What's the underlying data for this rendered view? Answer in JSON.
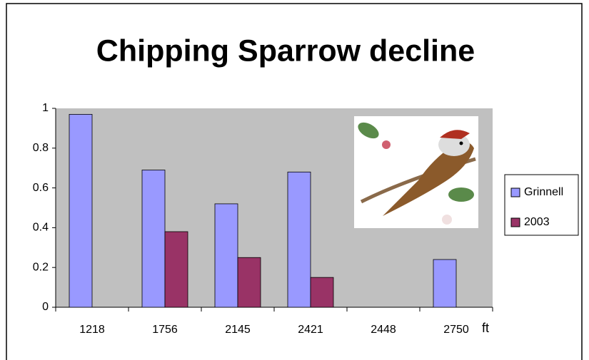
{
  "chart_data": {
    "type": "bar",
    "title": "Chipping Sparrow decline",
    "x_label": "ft",
    "categories": [
      "1218",
      "1756",
      "2145",
      "2421",
      "2448",
      "2750"
    ],
    "series": [
      {
        "name": "Grinnell",
        "color": "#9999ff",
        "values": [
          0.97,
          0.69,
          0.52,
          0.68,
          0,
          0.24
        ]
      },
      {
        "name": "2003",
        "color": "#993366",
        "values": [
          0,
          0.38,
          0.25,
          0.15,
          0,
          0
        ]
      }
    ],
    "ylim": [
      0,
      1
    ],
    "yticks": [
      0,
      0.2,
      0.4,
      0.6,
      0.8,
      1
    ],
    "grid": false,
    "legend": "right",
    "plot_background": "#c0c0c0"
  }
}
